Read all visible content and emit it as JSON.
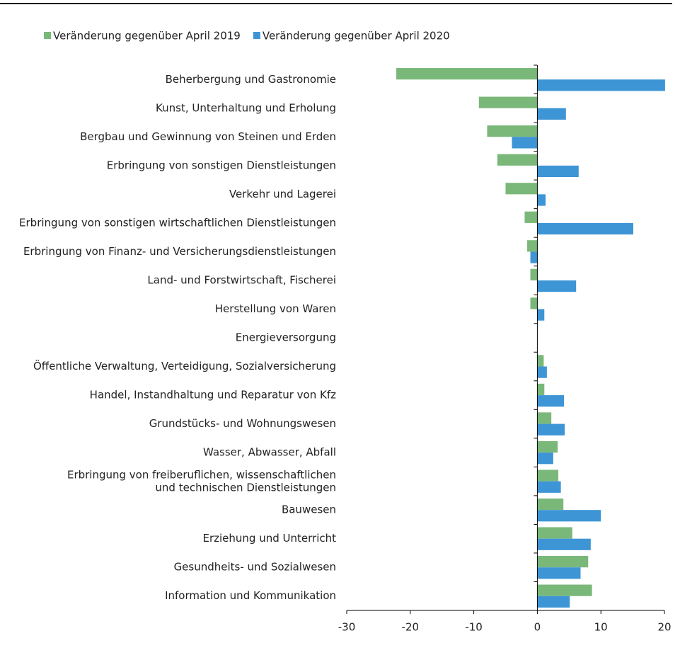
{
  "chart_data": {
    "type": "barh",
    "categories": [
      "Beherbergung und Gastronomie",
      "Kunst, Unterhaltung und Erholung",
      "Bergbau und Gewinnung von Steinen und Erden",
      "Erbringung von sonstigen Dienstleistungen",
      "Verkehr und Lagerei",
      "Erbringung von sonstigen wirtschaftlichen Dienstleistungen",
      "Erbringung von Finanz- und Versicherungsdienstleistungen",
      "Land- und Forstwirtschaft, Fischerei",
      "Herstellung von Waren",
      "Energieversorgung",
      "Öffentliche Verwaltung, Verteidigung, Sozialversicherung",
      "Handel, Instandhaltung und Reparatur von Kfz",
      "Grundstücks- und Wohnungswesen",
      "Wasser, Abwasser, Abfall",
      "Erbringung von freiberuflichen, wissenschaftlichen\nund technischen Dienstleistungen",
      "Bauwesen",
      "Erziehung und Unterricht",
      "Gesundheits- und Sozialwesen",
      "Information und Kommunikation"
    ],
    "series": [
      {
        "name": "Veränderung gegenüber April 2019",
        "color": "#7ab87a",
        "values": [
          -22.2,
          -9.2,
          -7.9,
          -6.3,
          -5.0,
          -2.0,
          -1.6,
          -1.1,
          -1.1,
          0,
          1.0,
          1.1,
          2.2,
          3.2,
          3.3,
          4.1,
          5.5,
          8.0,
          8.6
        ]
      },
      {
        "name": "Veränderung gegenüber April 2020",
        "color": "#3e95d6",
        "values": [
          20.1,
          4.5,
          -4.0,
          6.5,
          1.3,
          15.1,
          -1.1,
          6.1,
          1.1,
          0,
          1.5,
          4.2,
          4.3,
          2.5,
          3.7,
          10.0,
          8.4,
          6.8,
          5.1
        ]
      }
    ],
    "xlim": [
      -30,
      20
    ],
    "xticks": [
      -30,
      -20,
      -10,
      0,
      10,
      20
    ],
    "legend": "top-left"
  }
}
